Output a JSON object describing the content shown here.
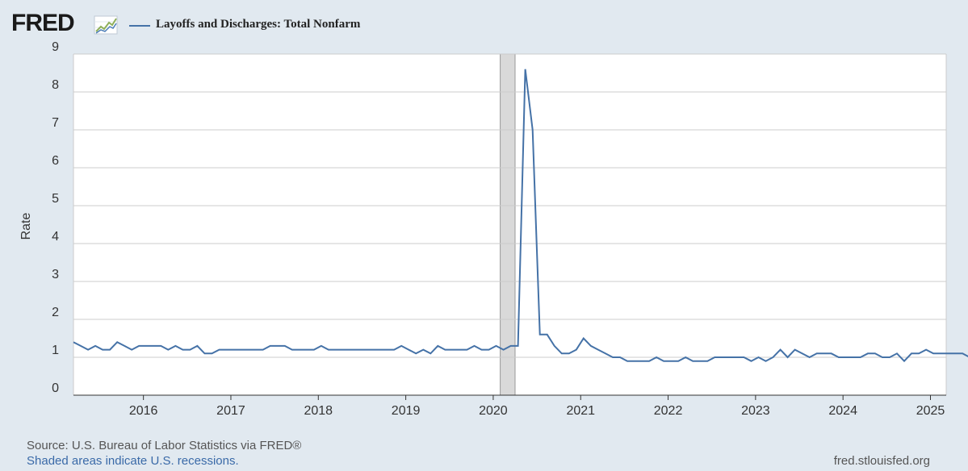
{
  "header": {
    "logo_text": "FRED",
    "series_title": "Layoffs and Discharges: Total Nonfarm"
  },
  "footer": {
    "source": "Source: U.S. Bureau of Labor Statistics via FRED®",
    "recession_note": "Shaded areas indicate U.S. recessions.",
    "site": "fred.stlouisfed.org"
  },
  "colors": {
    "line": "#4572a7",
    "recession": "#d9d9d9",
    "grid": "#cccccc",
    "background": "#e1e9f0"
  },
  "chart_data": {
    "type": "line",
    "title": "Layoffs and Discharges: Total Nonfarm",
    "xlabel": "",
    "ylabel": "Rate",
    "xlim": [
      2015.2,
      2025.18
    ],
    "ylim": [
      0,
      9
    ],
    "y_ticks": [
      0,
      1,
      2,
      3,
      4,
      5,
      6,
      7,
      8,
      9
    ],
    "x_ticks": [
      2016,
      2017,
      2018,
      2019,
      2020,
      2021,
      2022,
      2023,
      2024,
      2025
    ],
    "grid": true,
    "recessions": [
      {
        "start": 2020.08,
        "end": 2020.25
      }
    ],
    "series": [
      {
        "name": "Layoffs and Discharges: Total Nonfarm",
        "start": 2015.2,
        "step": 0.0833333,
        "values": [
          1.4,
          1.3,
          1.2,
          1.3,
          1.2,
          1.2,
          1.4,
          1.3,
          1.2,
          1.3,
          1.3,
          1.3,
          1.3,
          1.2,
          1.3,
          1.2,
          1.2,
          1.3,
          1.1,
          1.1,
          1.2,
          1.2,
          1.2,
          1.2,
          1.2,
          1.2,
          1.2,
          1.3,
          1.3,
          1.3,
          1.2,
          1.2,
          1.2,
          1.2,
          1.3,
          1.2,
          1.2,
          1.2,
          1.2,
          1.2,
          1.2,
          1.2,
          1.2,
          1.2,
          1.2,
          1.3,
          1.2,
          1.1,
          1.2,
          1.1,
          1.3,
          1.2,
          1.2,
          1.2,
          1.2,
          1.3,
          1.2,
          1.2,
          1.3,
          1.2,
          1.3,
          1.3,
          8.6,
          7.0,
          1.6,
          1.6,
          1.3,
          1.1,
          1.1,
          1.2,
          1.5,
          1.3,
          1.2,
          1.1,
          1.0,
          1.0,
          0.9,
          0.9,
          0.9,
          0.9,
          1.0,
          0.9,
          0.9,
          0.9,
          1.0,
          0.9,
          0.9,
          0.9,
          1.0,
          1.0,
          1.0,
          1.0,
          1.0,
          0.9,
          1.0,
          0.9,
          1.0,
          1.2,
          1.0,
          1.2,
          1.1,
          1.0,
          1.1,
          1.1,
          1.1,
          1.0,
          1.0,
          1.0,
          1.0,
          1.1,
          1.1,
          1.0,
          1.0,
          1.1,
          0.9,
          1.1,
          1.1,
          1.2,
          1.1,
          1.1,
          1.1,
          1.1,
          1.1,
          1.0
        ]
      }
    ]
  }
}
